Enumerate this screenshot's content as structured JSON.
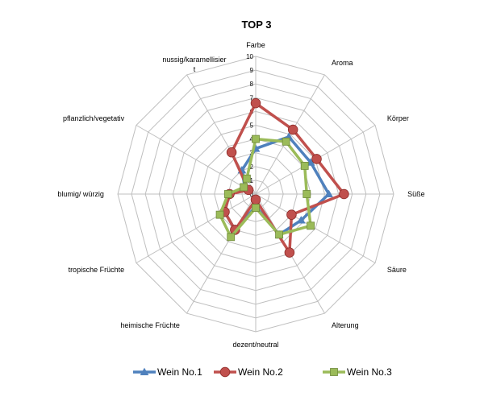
{
  "chart_data": {
    "type": "radar",
    "title": "TOP 3",
    "categories": [
      "Farbe",
      "Aroma",
      "Körper",
      "Süße",
      "Säure",
      "Alterung",
      "dezent/neutral",
      "heimische Früchte",
      "tropische Früchte",
      "blumig/ würzig",
      "pflanzlich/vegetativ",
      "nussig/karamellisier t"
    ],
    "rlim": [
      0,
      10
    ],
    "ticks": [
      "0",
      "1",
      "2",
      "3",
      "4",
      "5",
      "6",
      "7",
      "8",
      "9",
      "10"
    ],
    "grid": true,
    "legend": "bottom",
    "series": [
      {
        "name": "Wein No.1",
        "color": "#4F81BD",
        "marker": "triangle",
        "values": [
          3.3,
          4.8,
          4.6,
          5.3,
          3.8,
          3.4,
          0.9,
          3.0,
          2.6,
          1.9,
          0.9,
          2.0
        ]
      },
      {
        "name": "Wein No.2",
        "color": "#C0504D",
        "marker": "circle",
        "values": [
          6.6,
          5.4,
          5.1,
          6.4,
          3.0,
          4.9,
          0.4,
          3.0,
          2.6,
          1.9,
          0.6,
          3.5
        ]
      },
      {
        "name": "Wein No.3",
        "color": "#9BBB59",
        "marker": "square",
        "values": [
          4.0,
          4.4,
          4.1,
          3.7,
          4.6,
          3.4,
          1.0,
          3.6,
          3.0,
          2.0,
          1.0,
          1.3
        ]
      }
    ]
  }
}
